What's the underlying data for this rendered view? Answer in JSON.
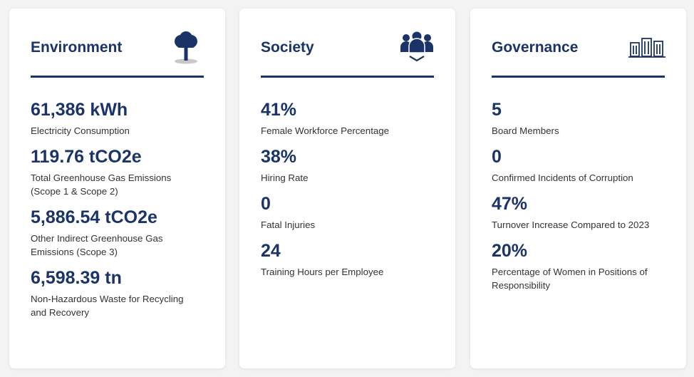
{
  "cards": [
    {
      "title": "Environment",
      "metrics": [
        {
          "value": "61,386 kWh",
          "label": "Electricity Consumption"
        },
        {
          "value": "119.76 tCO2e",
          "label": "Total Greenhouse Gas Emissions (Scope 1 & Scope 2)"
        },
        {
          "value": "5,886.54 tCO2e",
          "label": "Other Indirect Greenhouse Gas Emissions (Scope 3)"
        },
        {
          "value": "6,598.39 tn",
          "label": "Non-Hazardous Waste for Recycling and Recovery"
        }
      ]
    },
    {
      "title": "Society",
      "metrics": [
        {
          "value": "41%",
          "label": "Female Workforce Percentage"
        },
        {
          "value": "38%",
          "label": "Hiring Rate"
        },
        {
          "value": "0",
          "label": "Fatal Injuries"
        },
        {
          "value": "24",
          "label": "Training Hours per Employee"
        }
      ]
    },
    {
      "title": "Governance",
      "metrics": [
        {
          "value": "5",
          "label": "Board Members"
        },
        {
          "value": "0",
          "label": "Confirmed Incidents of Corruption"
        },
        {
          "value": "47%",
          "label": "Turnover Increase Compared to 2023"
        },
        {
          "value": "20%",
          "label": "Percentage of Women in Positions of Responsibility"
        }
      ]
    }
  ]
}
